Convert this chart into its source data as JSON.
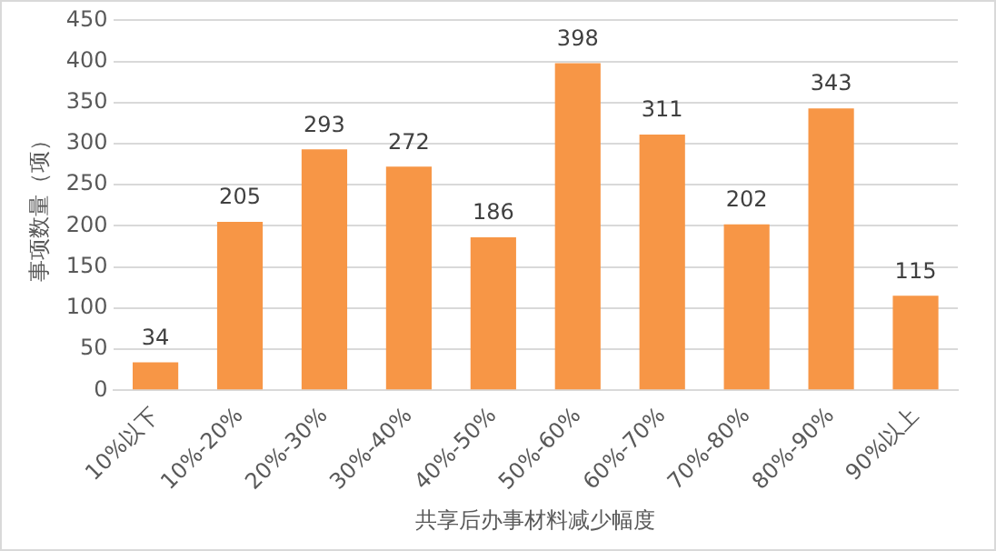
{
  "chart_data": {
    "type": "bar",
    "xlabel": "共享后办事材料减少幅度",
    "ylabel": "事项数量（项）",
    "categories": [
      "10%以下",
      "10%-20%",
      "20%-30%",
      "30%-40%",
      "40%-50%",
      "50%-60%",
      "60%-70%",
      "70%-80%",
      "80%-90%",
      "90%以上"
    ],
    "values": [
      34,
      205,
      293,
      272,
      186,
      398,
      311,
      202,
      343,
      115
    ],
    "color": "#f79646",
    "ylim": [
      0,
      450
    ],
    "yticks": [
      0,
      50,
      100,
      150,
      200,
      250,
      300,
      350,
      400,
      450
    ],
    "grid": "y",
    "data_labels": true,
    "legend": false
  }
}
